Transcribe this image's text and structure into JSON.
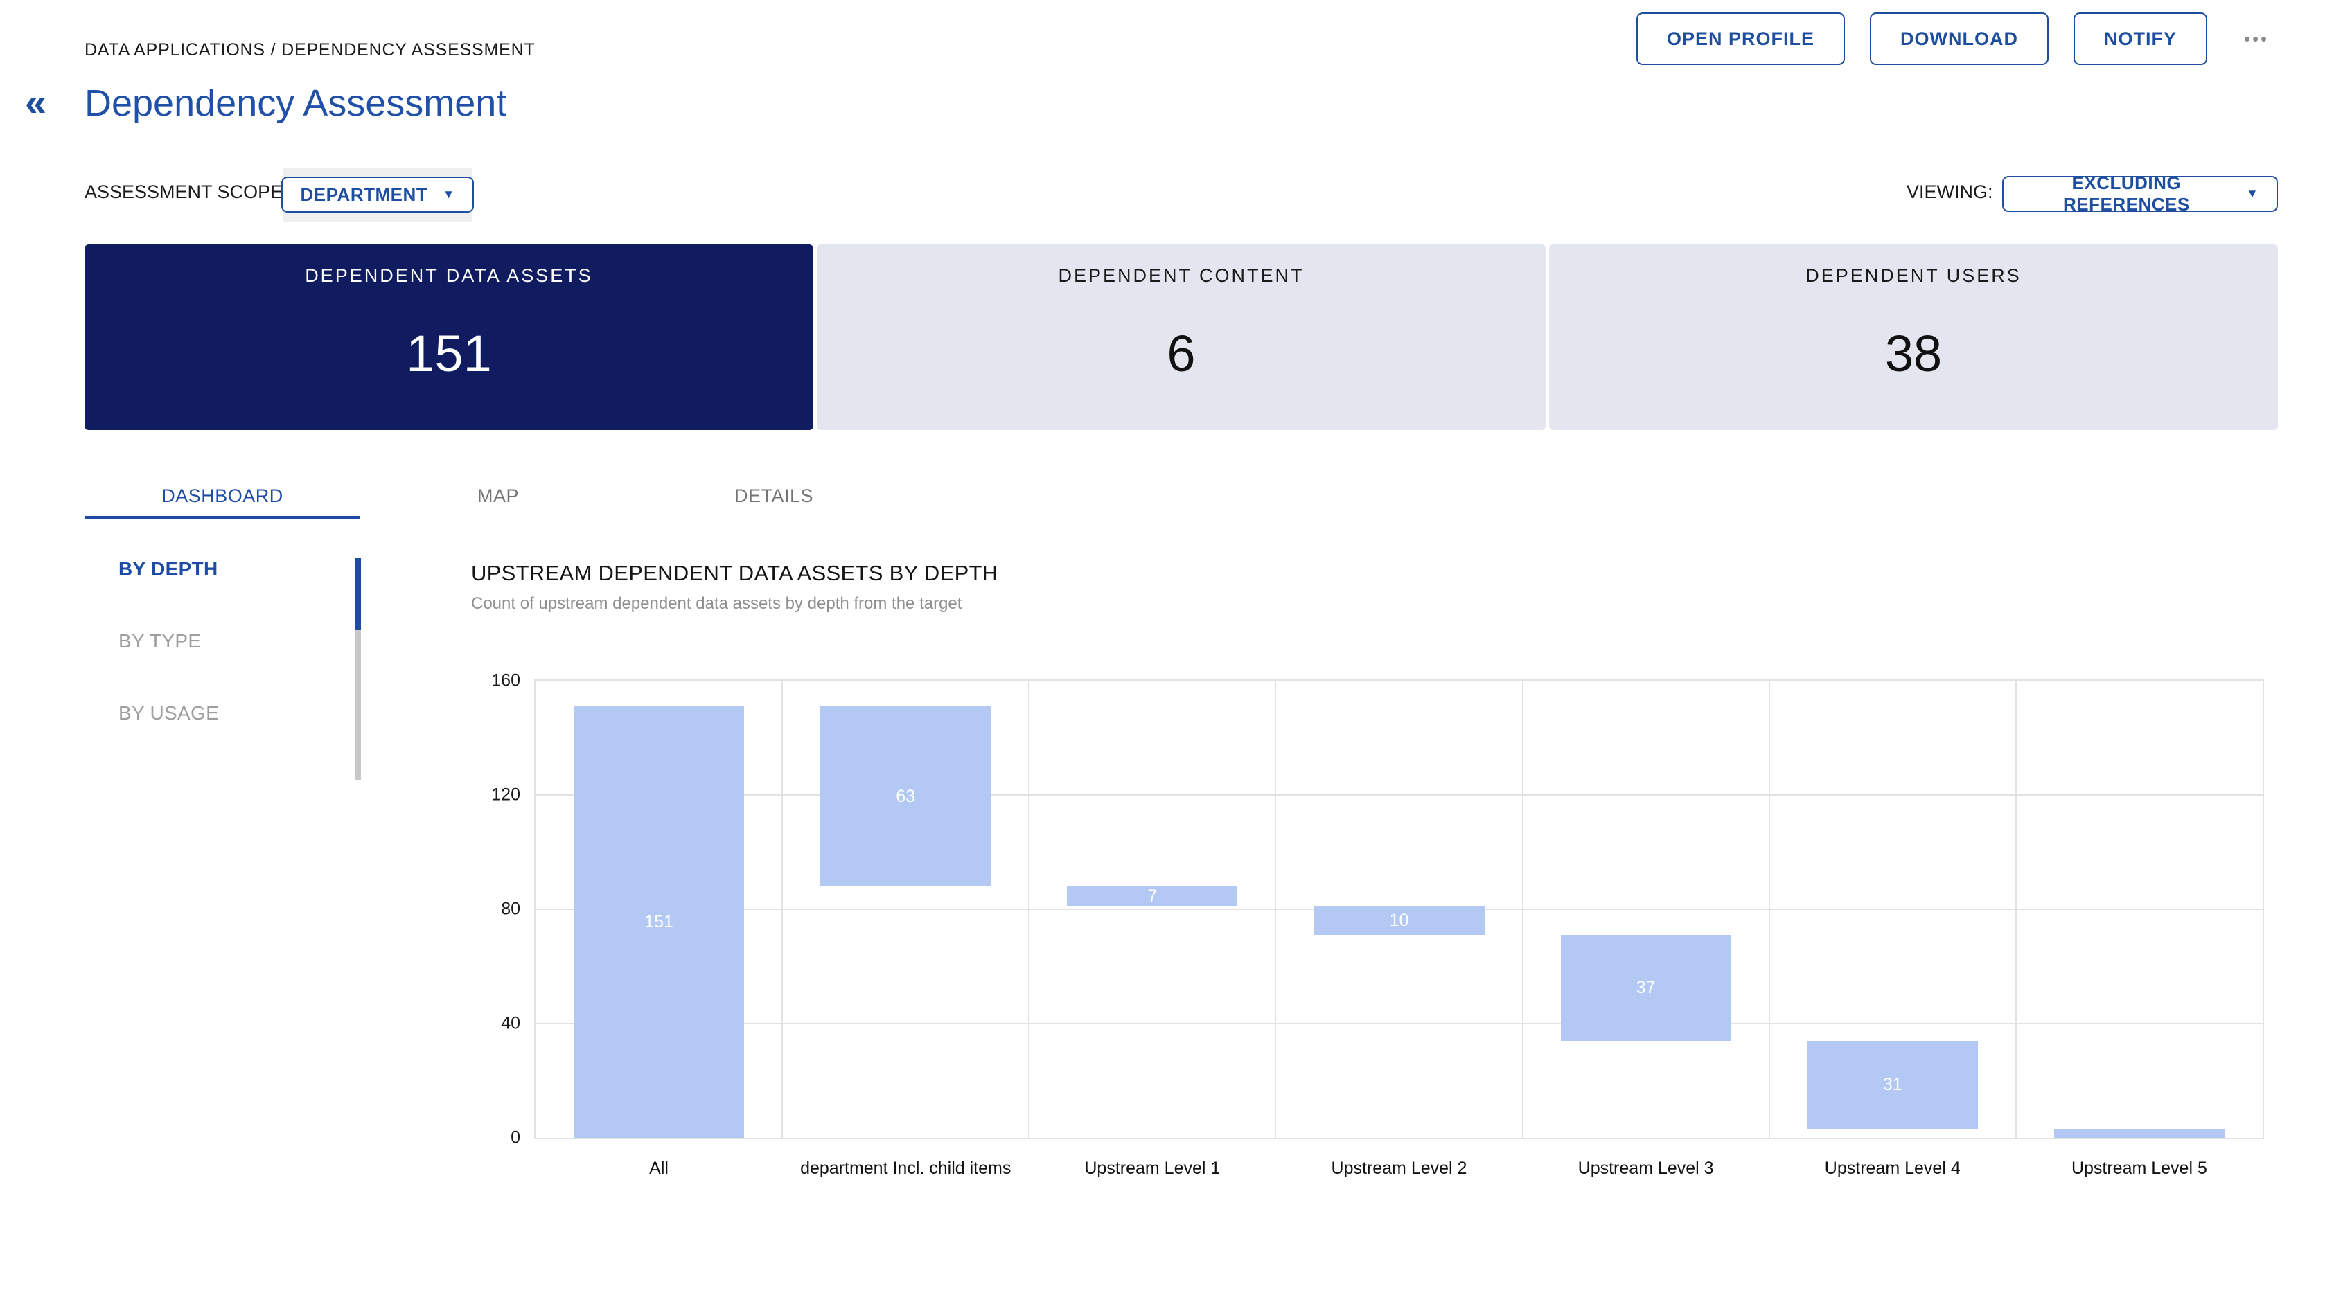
{
  "header": {
    "breadcrumb": "DATA APPLICATIONS / DEPENDENCY ASSESSMENT",
    "collapse_icon": "«",
    "title": "Dependency Assessment",
    "actions": [
      {
        "label": "OPEN PROFILE"
      },
      {
        "label": "DOWNLOAD"
      },
      {
        "label": "NOTIFY"
      }
    ],
    "more_icon": "•••"
  },
  "filters": {
    "scope_label": "ASSESSMENT SCOPE:",
    "scope_value": "DEPARTMENT",
    "viewing_label": "VIEWING:",
    "viewing_value": "EXCLUDING REFERENCES",
    "caret_icon": "▼"
  },
  "stat_cards": [
    {
      "label": "DEPENDENT DATA ASSETS",
      "value": "151",
      "active": true
    },
    {
      "label": "DEPENDENT CONTENT",
      "value": "6",
      "active": false
    },
    {
      "label": "DEPENDENT USERS",
      "value": "38",
      "active": false
    }
  ],
  "tabs": [
    {
      "label": "DASHBOARD",
      "active": true
    },
    {
      "label": "MAP",
      "active": false
    },
    {
      "label": "DETAILS",
      "active": false
    }
  ],
  "side_nav": [
    {
      "label": "BY DEPTH",
      "active": true
    },
    {
      "label": "BY TYPE",
      "active": false
    },
    {
      "label": "BY USAGE",
      "active": false
    }
  ],
  "chart": {
    "title": "UPSTREAM DEPENDENT DATA ASSETS BY DEPTH",
    "subtitle": "Count of upstream dependent data assets by depth from the target"
  },
  "chart_data": {
    "type": "bar",
    "subtype": "floating-waterfall",
    "title": "UPSTREAM DEPENDENT DATA ASSETS BY DEPTH",
    "xlabel": "",
    "ylabel": "",
    "ylim": [
      0,
      160
    ],
    "yticks": [
      0,
      40,
      80,
      120,
      160
    ],
    "grid": true,
    "legend": false,
    "bar_color": "#b3c9f3",
    "value_label_color": "#ffffff",
    "categories": [
      "All",
      "department Incl. child items",
      "Upstream Level 1",
      "Upstream Level 2",
      "Upstream Level 3",
      "Upstream Level 4",
      "Upstream Level 5"
    ],
    "bars": [
      {
        "category": "All",
        "value": 151,
        "start": 0,
        "end": 151,
        "value_label": "151"
      },
      {
        "category": "department Incl. child items",
        "value": 63,
        "start": 88,
        "end": 151,
        "value_label": "63"
      },
      {
        "category": "Upstream Level 1",
        "value": 7,
        "start": 81,
        "end": 88,
        "value_label": "7"
      },
      {
        "category": "Upstream Level 2",
        "value": 10,
        "start": 71,
        "end": 81,
        "value_label": "10"
      },
      {
        "category": "Upstream Level 3",
        "value": 37,
        "start": 34,
        "end": 71,
        "value_label": "37"
      },
      {
        "category": "Upstream Level 4",
        "value": 31,
        "start": 3,
        "end": 34,
        "value_label": "31"
      },
      {
        "category": "Upstream Level 5",
        "value": 3,
        "start": 0,
        "end": 3,
        "value_label": ""
      }
    ]
  },
  "colors": {
    "accent_blue": "#1d4ea0",
    "title_blue": "#2150a8",
    "active_card_bg": "#101c5f",
    "inactive_card_bg": "#e3e6ee",
    "bar_fill": "#b3c9f3",
    "grid_line": "#e2e2e2",
    "muted_text": "#8f8f8f"
  }
}
